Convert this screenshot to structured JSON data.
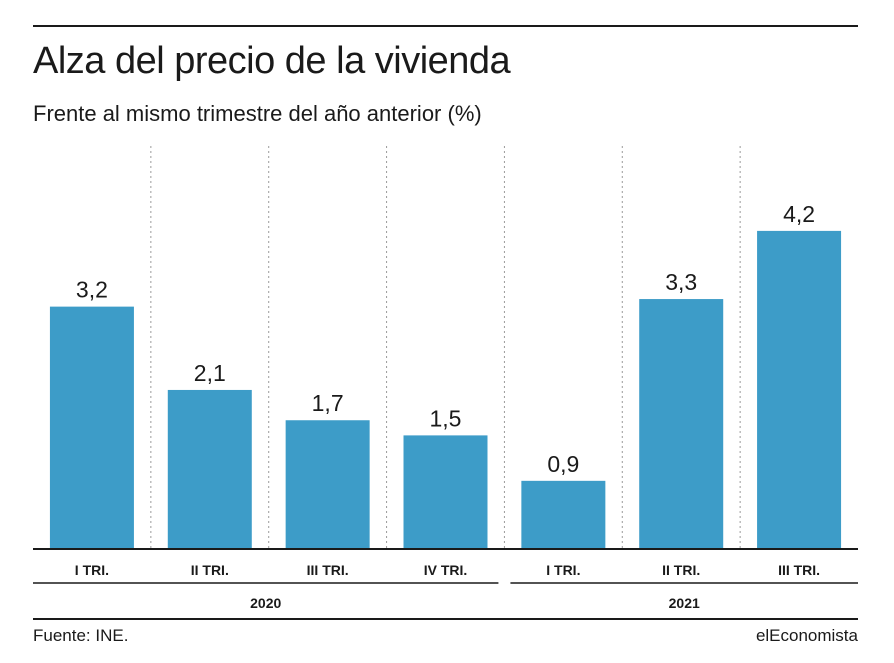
{
  "title": "Alza del precio de la vivienda",
  "subtitle": "Frente al mismo trimestre del año anterior (%)",
  "source": "Fuente: INE.",
  "brand": "elEconomista",
  "colors": {
    "bar": "#3d9cc8",
    "text": "#1a1a1a",
    "grid": "#9a9a9a"
  },
  "chart_data": {
    "type": "bar",
    "categories": [
      "I TRI.",
      "II TRI.",
      "III TRI.",
      "IV TRI.",
      "I TRI.",
      "II TRI.",
      "III TRI."
    ],
    "values": [
      3.2,
      2.1,
      1.7,
      1.5,
      0.9,
      3.3,
      4.2
    ],
    "value_labels": [
      "3,2",
      "2,1",
      "1,7",
      "1,5",
      "0,9",
      "3,3",
      "4,2"
    ],
    "groups": [
      {
        "label": "2020",
        "start": 0,
        "end": 3
      },
      {
        "label": "2021",
        "start": 4,
        "end": 6
      }
    ],
    "ylim": [
      0,
      5.4
    ],
    "grid": "vertical dotted separators",
    "legend": "none"
  }
}
